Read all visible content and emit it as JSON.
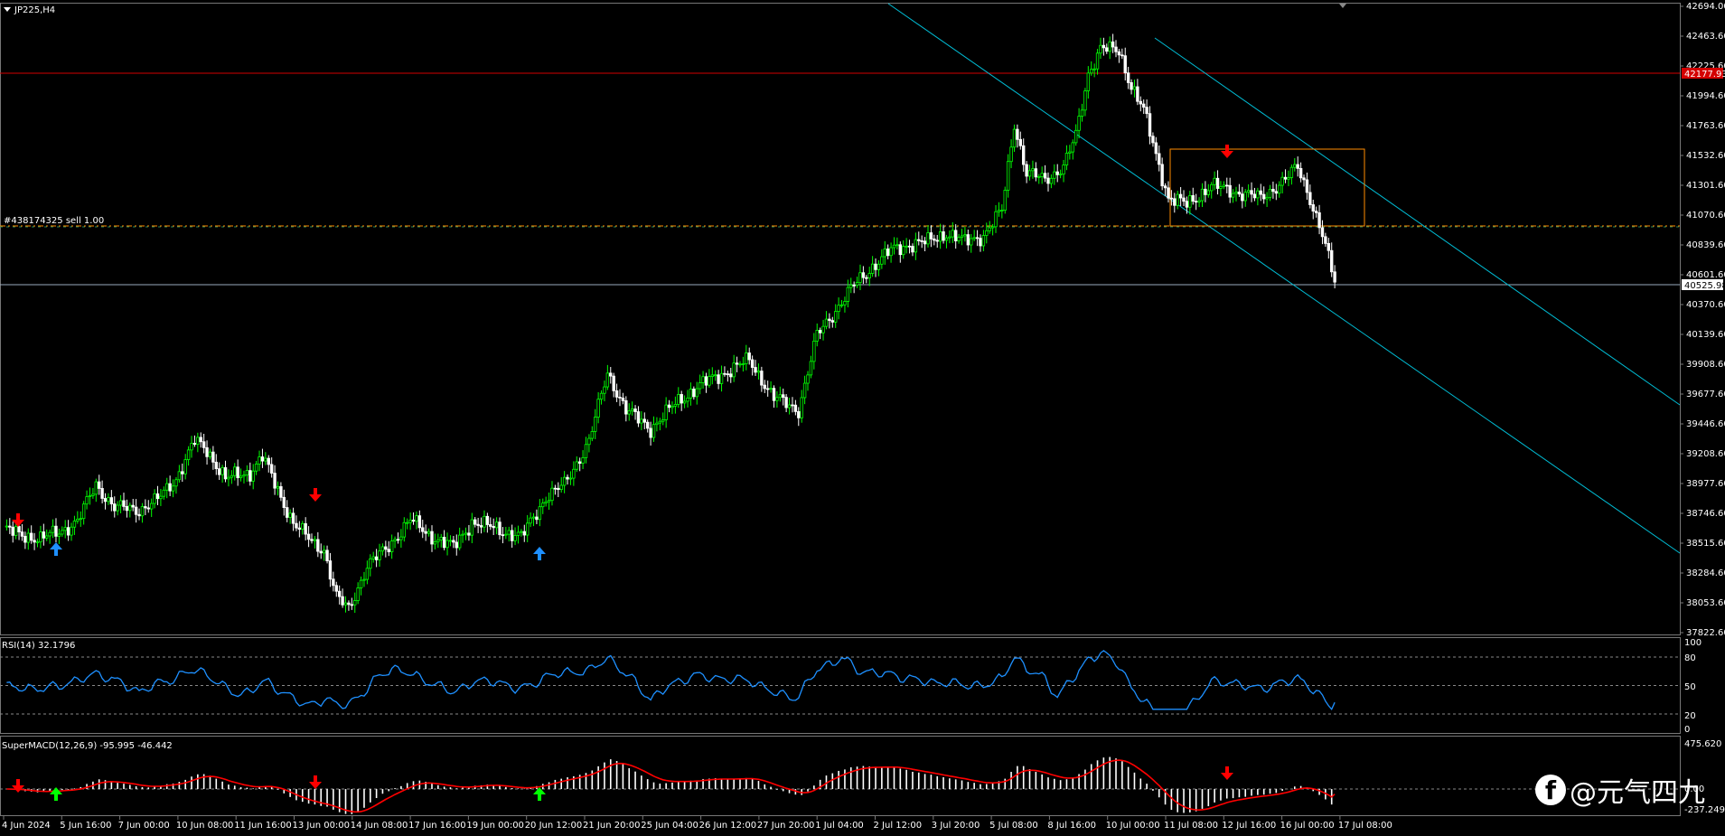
{
  "symbol_label": "JP225,H4",
  "order_label": "#438174325 sell 1.00",
  "colors": {
    "bg": "#000000",
    "bull": "#00ff00",
    "bear": "#ffffff",
    "channel": "#00bcd4",
    "resistance": "#d40000",
    "order_line": "#ff8c00",
    "box": "#ff8c00",
    "rsi": "#1e90ff",
    "macd_signal": "#ff0000",
    "arrow_down": "#ff0000",
    "arrow_up_blue": "#1e90ff",
    "arrow_up_green": "#00ff00",
    "axis_text": "#ffffff",
    "grid": "#888888"
  },
  "price_axis": {
    "labels": [
      "42694.00",
      "42463.60",
      "42225.60",
      "41994.60",
      "41763.60",
      "41532.60",
      "41301.60",
      "41070.60",
      "40839.60",
      "40601.60",
      "40370.60",
      "40139.60",
      "39908.60",
      "39677.60",
      "39446.60",
      "39208.60",
      "38977.60",
      "38746.60",
      "38515.60",
      "38284.60",
      "38053.60",
      "37822.60"
    ],
    "current_price": "40525.98",
    "resistance_price": "42177.93"
  },
  "time_axis": {
    "labels": [
      "4 Jun 2024",
      "5 Jun 16:00",
      "7 Jun 00:00",
      "10 Jun 08:00",
      "11 Jun 16:00",
      "13 Jun 00:00",
      "14 Jun 08:00",
      "17 Jun 16:00",
      "19 Jun 00:00",
      "20 Jun 12:00",
      "21 Jun 20:00",
      "25 Jun 04:00",
      "26 Jun 12:00",
      "27 Jun 20:00",
      "1 Jul 04:00",
      "2 Jul 12:00",
      "3 Jul 20:00",
      "5 Jul 08:00",
      "8 Jul 16:00",
      "10 Jul 00:00",
      "11 Jul 08:00",
      "12 Jul 16:00",
      "16 Jul 00:00",
      "17 Jul 08:00"
    ]
  },
  "rsi": {
    "label": "RSI(14) 32.1796",
    "levels": [
      "100",
      "80",
      "50",
      "20",
      "0"
    ]
  },
  "macd": {
    "label": "SuperMACD(12,26,9) -95.995 -46.442",
    "levels": [
      "475.620",
      "0.00",
      "-237.249"
    ]
  },
  "watermark": {
    "logo_letter": "f",
    "text": "@元气四九"
  },
  "chart_data": {
    "type": "candlestick",
    "symbol": "JP225",
    "timeframe": "H4",
    "ylim": [
      37700,
      42760
    ],
    "close_path": [
      [
        0,
        38550
      ],
      [
        5,
        38500
      ],
      [
        12,
        38470
      ],
      [
        18,
        38520
      ],
      [
        24,
        38610
      ],
      [
        30,
        38900
      ],
      [
        36,
        38720
      ],
      [
        44,
        38700
      ],
      [
        50,
        38780
      ],
      [
        56,
        38950
      ],
      [
        62,
        39250
      ],
      [
        66,
        39180
      ],
      [
        72,
        38950
      ],
      [
        80,
        39000
      ],
      [
        84,
        39130
      ],
      [
        90,
        38800
      ],
      [
        94,
        38600
      ],
      [
        100,
        38440
      ],
      [
        104,
        38380
      ],
      [
        108,
        38000
      ],
      [
        112,
        37900
      ],
      [
        118,
        38250
      ],
      [
        124,
        38380
      ],
      [
        132,
        38620
      ],
      [
        138,
        38500
      ],
      [
        146,
        38400
      ],
      [
        152,
        38600
      ],
      [
        160,
        38550
      ],
      [
        168,
        38480
      ],
      [
        176,
        38800
      ],
      [
        182,
        38900
      ],
      [
        190,
        39250
      ],
      [
        196,
        39800
      ],
      [
        202,
        39500
      ],
      [
        210,
        39350
      ],
      [
        218,
        39550
      ],
      [
        226,
        39700
      ],
      [
        234,
        39800
      ],
      [
        242,
        39900
      ],
      [
        250,
        39600
      ],
      [
        258,
        39500
      ],
      [
        264,
        40100
      ],
      [
        270,
        40300
      ],
      [
        276,
        40500
      ],
      [
        282,
        40650
      ],
      [
        288,
        40780
      ],
      [
        294,
        40830
      ],
      [
        300,
        40850
      ],
      [
        306,
        40920
      ],
      [
        312,
        40850
      ],
      [
        318,
        40900
      ],
      [
        324,
        41100
      ],
      [
        328,
        41800
      ],
      [
        332,
        41400
      ],
      [
        338,
        41350
      ],
      [
        344,
        41450
      ],
      [
        348,
        41700
      ],
      [
        352,
        42200
      ],
      [
        356,
        42400
      ],
      [
        362,
        42380
      ],
      [
        366,
        42100
      ],
      [
        370,
        41900
      ],
      [
        374,
        41550
      ],
      [
        378,
        41200
      ],
      [
        384,
        41150
      ],
      [
        392,
        41300
      ],
      [
        400,
        41250
      ],
      [
        408,
        41200
      ],
      [
        416,
        41350
      ],
      [
        420,
        41450
      ],
      [
        424,
        41200
      ],
      [
        428,
        40900
      ],
      [
        432,
        40530
      ]
    ],
    "rsi": {
      "period": 14,
      "last": 32.1796,
      "levels": [
        80,
        50,
        20
      ]
    },
    "macd": {
      "fast": 12,
      "slow": 26,
      "signal": 9,
      "main": -95.995,
      "signal_value": -46.442
    }
  }
}
